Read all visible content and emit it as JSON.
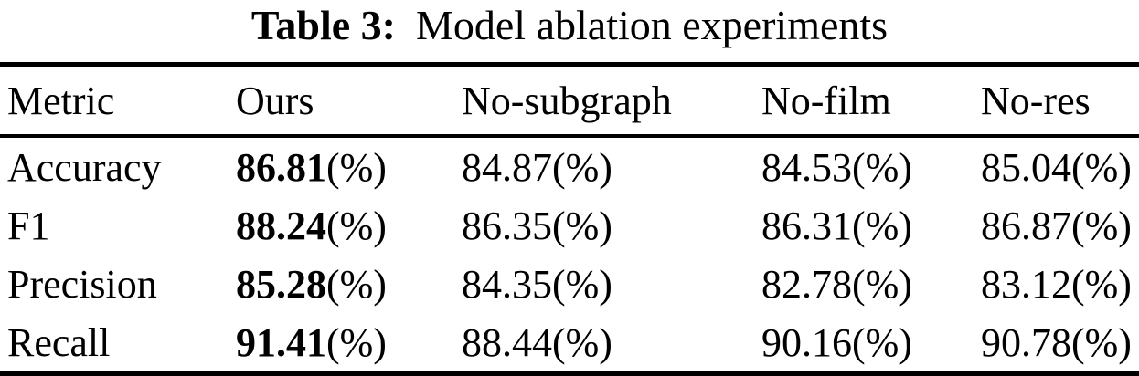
{
  "title": {
    "prefix": "Table 3:",
    "text": "Model ablation experiments"
  },
  "table": {
    "headers": [
      "Metric",
      "Ours",
      "No-subgraph",
      "No-film",
      "No-res"
    ],
    "unit": "(%)",
    "rows": [
      {
        "metric": "Accuracy",
        "ours": "86.81",
        "no_subgraph": "84.87",
        "no_film": "84.53",
        "no_res": "85.04"
      },
      {
        "metric": "F1",
        "ours": "88.24",
        "no_subgraph": "86.35",
        "no_film": "86.31",
        "no_res": "86.87"
      },
      {
        "metric": "Precision",
        "ours": "85.28",
        "no_subgraph": "84.35",
        "no_film": "82.78",
        "no_res": "83.12"
      },
      {
        "metric": "Recall",
        "ours": "91.41",
        "no_subgraph": "88.44",
        "no_film": "90.16",
        "no_res": "90.78"
      }
    ]
  },
  "colors": {
    "background": "#ffffff",
    "text": "#000000",
    "rule": "#000000"
  }
}
